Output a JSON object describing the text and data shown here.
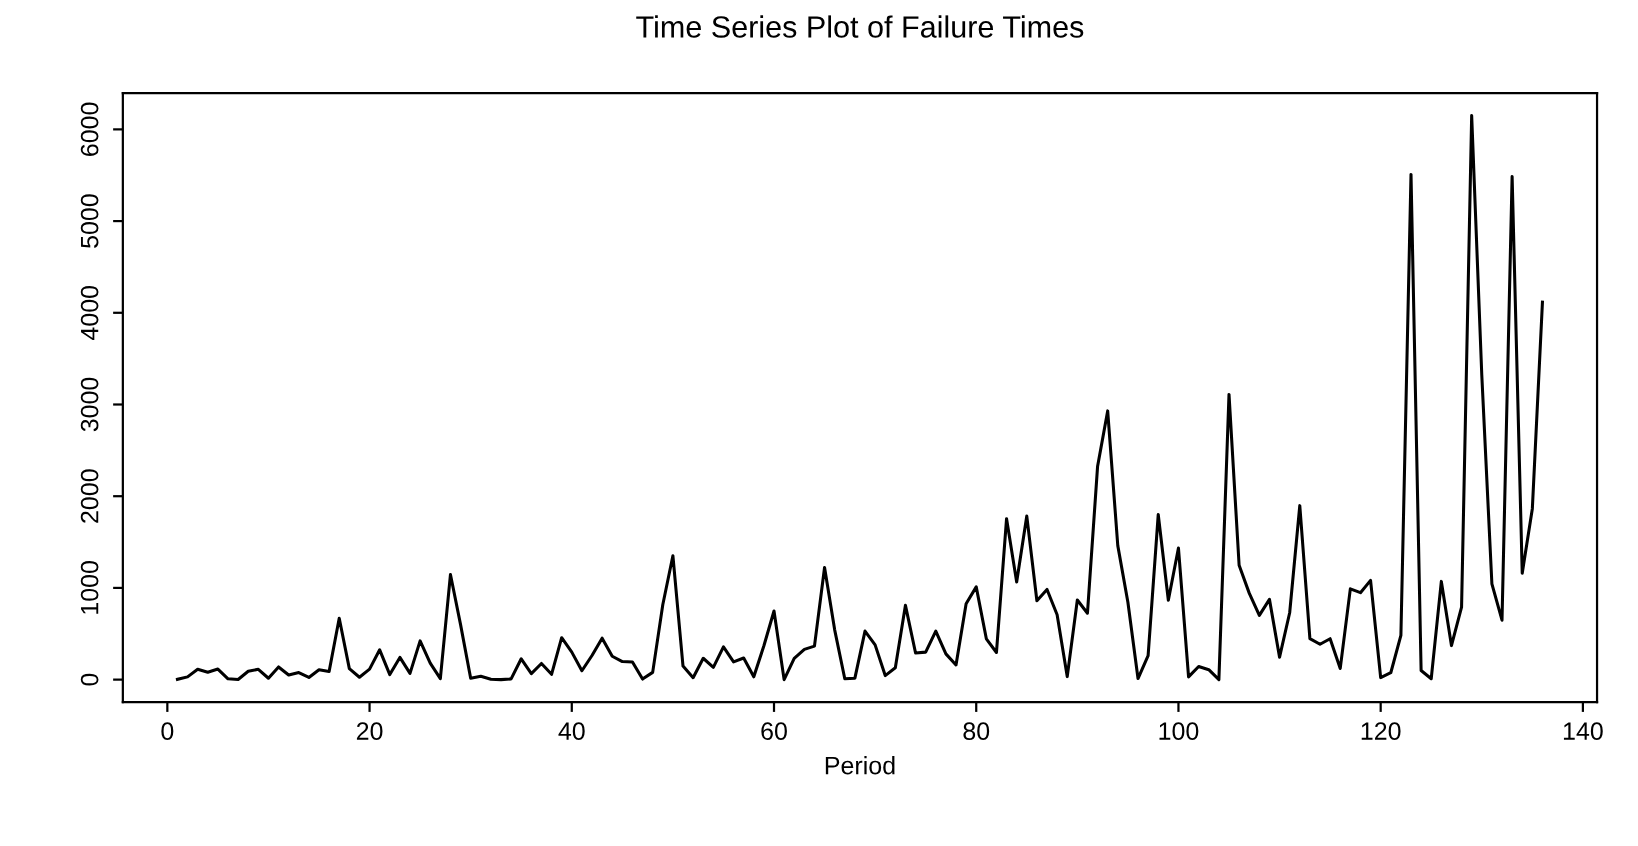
{
  "chart_data": {
    "type": "line",
    "title": "Time Series Plot of Failure Times",
    "xlabel": "Period",
    "xlim": [
      -4.4,
      141.4
    ],
    "xticks": [
      0,
      20,
      40,
      60,
      80,
      100,
      120,
      140
    ],
    "ylim": [
      -246,
      6396
    ],
    "yticks": [
      0,
      1000,
      2000,
      3000,
      4000,
      5000,
      6000
    ],
    "grid": false,
    "marker": "none",
    "line_style": "solid",
    "series": [
      {
        "color": "#000000",
        "x": [
          1,
          2,
          3,
          4,
          5,
          6,
          7,
          8,
          9,
          10,
          11,
          12,
          13,
          14,
          15,
          16,
          17,
          18,
          19,
          20,
          21,
          22,
          23,
          24,
          25,
          26,
          27,
          28,
          29,
          30,
          31,
          32,
          33,
          34,
          35,
          36,
          37,
          38,
          39,
          40,
          41,
          42,
          43,
          44,
          45,
          46,
          47,
          48,
          49,
          50,
          51,
          52,
          53,
          54,
          55,
          56,
          57,
          58,
          59,
          60,
          61,
          62,
          63,
          64,
          65,
          66,
          67,
          68,
          69,
          70,
          71,
          72,
          73,
          74,
          75,
          76,
          77,
          78,
          79,
          80,
          81,
          82,
          83,
          84,
          85,
          86,
          87,
          88,
          89,
          90,
          91,
          92,
          93,
          94,
          95,
          96,
          97,
          98,
          99,
          100,
          101,
          102,
          103,
          104,
          105,
          106,
          107,
          108,
          109,
          110,
          111,
          112,
          113,
          114,
          115,
          116,
          117,
          118,
          119,
          120,
          121,
          122,
          123,
          124,
          125,
          126,
          127,
          128,
          129,
          130,
          131,
          132,
          133,
          134,
          135,
          136
        ],
        "values": [
          3,
          30,
          113,
          81,
          115,
          9,
          2,
          91,
          112,
          15,
          138,
          50,
          77,
          24,
          108,
          88,
          670,
          120,
          26,
          114,
          325,
          55,
          242,
          68,
          422,
          180,
          10,
          1146,
          600,
          15,
          36,
          4,
          0,
          8,
          227,
          65,
          176,
          58,
          457,
          300,
          97,
          263,
          452,
          255,
          197,
          193,
          6,
          79,
          816,
          1351,
          148,
          21,
          233,
          134,
          357,
          193,
          236,
          31,
          369,
          748,
          0,
          232,
          330,
          365,
          1222,
          543,
          10,
          16,
          529,
          379,
          44,
          129,
          810,
          290,
          300,
          529,
          281,
          160,
          828,
          1011,
          445,
          296,
          1755,
          1064,
          1783,
          860,
          983,
          707,
          33,
          868,
          724,
          2323,
          2930,
          1461,
          843,
          12,
          261,
          1800,
          865,
          1435,
          30,
          143,
          108,
          0,
          3110,
          1247,
          943,
          700,
          875,
          245,
          729,
          1897,
          447,
          386,
          446,
          122,
          990,
          948,
          1082,
          22,
          75,
          482,
          5509,
          100,
          10,
          1071,
          371,
          790,
          6150,
          3321,
          1045,
          648,
          5485,
          1160,
          1864,
          4116
        ]
      }
    ]
  }
}
